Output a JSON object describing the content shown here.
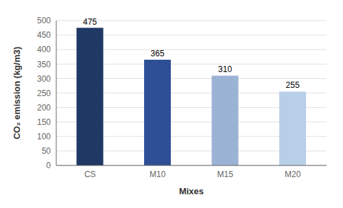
{
  "chart_data": {
    "type": "bar",
    "categories": [
      "CS",
      "M10",
      "M15",
      "M20"
    ],
    "values": [
      475,
      365,
      310,
      255
    ],
    "colors": [
      "#1f3864",
      "#2e4f96",
      "#9ab3d5",
      "#b8cfe8"
    ],
    "xlabel": "Mixes",
    "ylabel": "CO₂ emission (kg/m3)",
    "ylim": [
      0,
      500
    ],
    "yticks": [
      0,
      50,
      100,
      150,
      200,
      250,
      300,
      350,
      400,
      450,
      500
    ],
    "grid": true,
    "data_labels": true
  }
}
